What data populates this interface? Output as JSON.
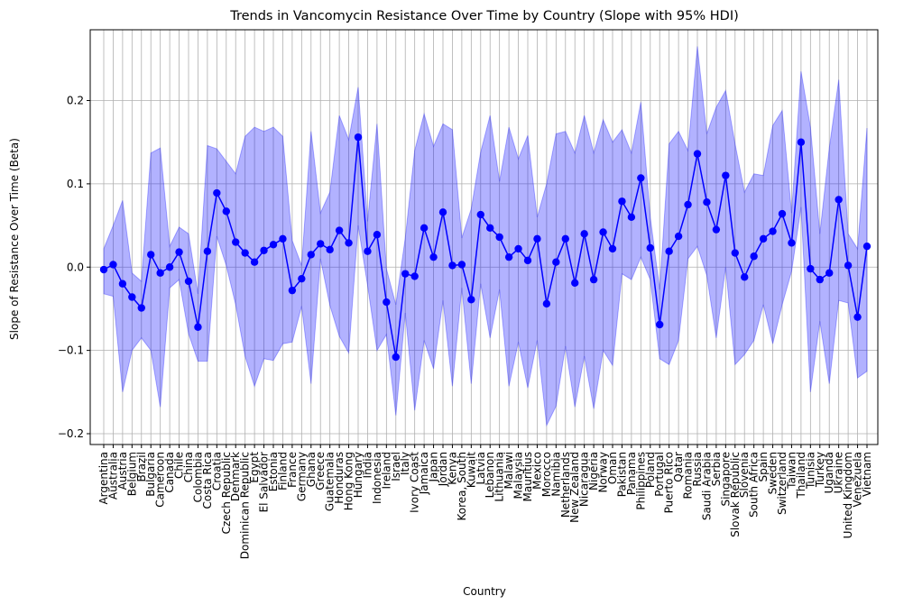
{
  "chart_data": {
    "type": "line",
    "title": "Trends in Vancomycin Resistance Over Time by Country (Slope with 95% HDI)",
    "xlabel": "Country",
    "ylabel": "Slope of Resistance Over Time (Beta)",
    "ylim": [
      -0.213,
      0.285
    ],
    "yticks": [
      -0.2,
      -0.1,
      0.0,
      0.1,
      0.2
    ],
    "ytick_labels": [
      "−0.2",
      "−0.1",
      "0.0",
      "0.1",
      "0.2"
    ],
    "grid": true,
    "line_color": "#0000ff",
    "band_color": "#0000ff",
    "categories": [
      "Argentina",
      "Australia",
      "Austria",
      "Belgium",
      "Brazil",
      "Bulgaria",
      "Cameroon",
      "Canada",
      "Chile",
      "China",
      "Colombia",
      "Costa Rica",
      "Croatia",
      "Czech Republic",
      "Denmark",
      "Dominican Republic",
      "Egypt",
      "El Salvador",
      "Estonia",
      "Finland",
      "France",
      "Germany",
      "Ghana",
      "Greece",
      "Guatemala",
      "Honduras",
      "Hong Kong",
      "Hungary",
      "India",
      "Indonesia",
      "Ireland",
      "Israel",
      "Italy",
      "Ivory Coast",
      "Jamaica",
      "Japan",
      "Jordan",
      "Kenya",
      "Korea, South",
      "Kuwait",
      "Latvia",
      "Lebanon",
      "Lithuania",
      "Malawi",
      "Malaysia",
      "Mauritius",
      "Mexico",
      "Morocco",
      "Namibia",
      "Netherlands",
      "New Zealand",
      "Nicaragua",
      "Nigeria",
      "Norway",
      "Oman",
      "Pakistan",
      "Panama",
      "Philippines",
      "Poland",
      "Portugal",
      "Puerto Rico",
      "Qatar",
      "Romania",
      "Russia",
      "Saudi Arabia",
      "Serbia",
      "Singapore",
      "Slovak Republic",
      "Slovenia",
      "South Africa",
      "Spain",
      "Sweden",
      "Switzerland",
      "Taiwan",
      "Thailand",
      "Tunisia",
      "Turkey",
      "Uganda",
      "Ukraine",
      "United Kingdom",
      "Venezuela",
      "Vietnam"
    ],
    "series": [
      {
        "values": [
          -0.003,
          0.003,
          -0.02,
          -0.036,
          -0.049,
          0.015,
          -0.007,
          0.0,
          0.018,
          -0.017,
          -0.072,
          0.019,
          0.089,
          0.067,
          0.03,
          0.017,
          0.006,
          0.02,
          0.027,
          0.034,
          -0.028,
          -0.014,
          0.015,
          0.028,
          0.021,
          0.044,
          0.029,
          0.156,
          0.019,
          0.039,
          -0.042,
          -0.108,
          -0.008,
          -0.011,
          0.047,
          0.012,
          0.066,
          0.002,
          0.003,
          -0.039,
          0.063,
          0.047,
          0.036,
          0.012,
          0.022,
          0.008,
          0.034,
          -0.044,
          0.006,
          0.034,
          -0.019,
          0.04,
          -0.015,
          0.042,
          0.022,
          0.079,
          0.06,
          0.107,
          0.023,
          -0.069,
          0.019,
          0.037,
          0.075,
          0.136,
          0.078,
          0.045,
          0.11,
          0.017,
          -0.012,
          0.013,
          0.034,
          0.043,
          0.064,
          0.029,
          0.15,
          -0.002,
          -0.015,
          -0.007,
          0.081,
          0.002,
          -0.06,
          0.025
        ],
        "lower": [
          -0.032,
          -0.035,
          -0.15,
          -0.1,
          -0.085,
          -0.1,
          -0.168,
          -0.025,
          -0.015,
          -0.08,
          -0.113,
          -0.113,
          0.037,
          0.002,
          -0.045,
          -0.107,
          -0.143,
          -0.11,
          -0.112,
          -0.092,
          -0.09,
          -0.047,
          -0.14,
          0.01,
          -0.046,
          -0.083,
          -0.103,
          0.05,
          -0.022,
          -0.1,
          -0.081,
          -0.178,
          -0.055,
          -0.172,
          -0.088,
          -0.122,
          -0.04,
          -0.143,
          -0.025,
          -0.14,
          -0.02,
          -0.085,
          -0.027,
          -0.143,
          -0.09,
          -0.145,
          -0.088,
          -0.19,
          -0.167,
          -0.095,
          -0.168,
          -0.107,
          -0.17,
          -0.1,
          -0.118,
          -0.008,
          -0.015,
          0.012,
          -0.015,
          -0.11,
          -0.117,
          -0.088,
          0.01,
          0.025,
          -0.01,
          -0.085,
          0.0,
          -0.117,
          -0.105,
          -0.088,
          -0.045,
          -0.092,
          -0.045,
          -0.005,
          0.072,
          -0.15,
          -0.065,
          -0.14,
          -0.04,
          -0.043,
          -0.133,
          -0.125
        ],
        "upper": [
          0.022,
          0.05,
          0.08,
          -0.007,
          -0.017,
          0.137,
          0.143,
          0.025,
          0.048,
          0.04,
          -0.032,
          0.146,
          0.142,
          0.127,
          0.112,
          0.157,
          0.168,
          0.163,
          0.168,
          0.157,
          0.032,
          0.002,
          0.163,
          0.065,
          0.09,
          0.182,
          0.153,
          0.216,
          0.055,
          0.172,
          -0.002,
          -0.045,
          0.035,
          0.14,
          0.184,
          0.145,
          0.172,
          0.165,
          0.035,
          0.07,
          0.138,
          0.182,
          0.103,
          0.168,
          0.13,
          0.158,
          0.06,
          0.1,
          0.16,
          0.163,
          0.137,
          0.182,
          0.137,
          0.177,
          0.15,
          0.165,
          0.137,
          0.198,
          0.06,
          -0.027,
          0.148,
          0.163,
          0.14,
          0.265,
          0.16,
          0.192,
          0.212,
          0.148,
          0.09,
          0.112,
          0.11,
          0.17,
          0.188,
          0.065,
          0.235,
          0.168,
          0.04,
          0.143,
          0.225,
          0.04,
          0.022,
          0.167
        ]
      }
    ]
  }
}
